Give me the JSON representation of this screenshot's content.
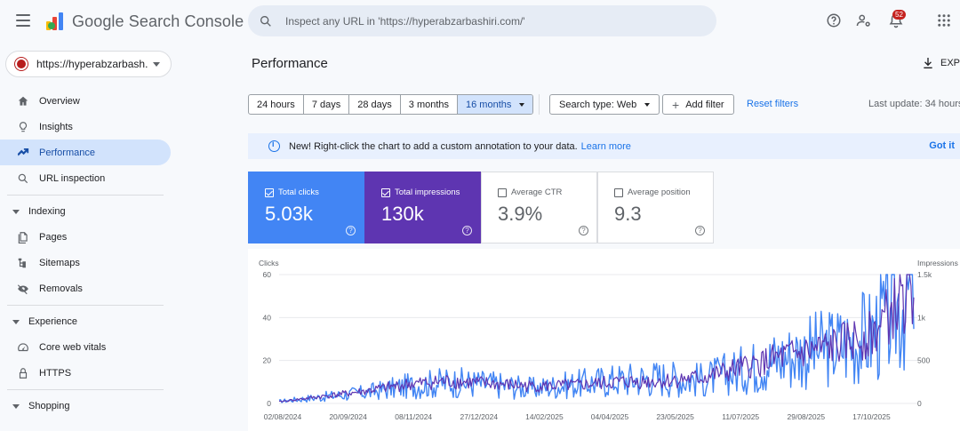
{
  "app": {
    "title": "Google Search Console",
    "property": "https://hyperabzarbash...",
    "search_placeholder": "Inspect any URL in 'https://hyperabzarbashiri.com/'",
    "notification_count": "52"
  },
  "sidebar": {
    "items": [
      {
        "label": "Overview",
        "icon": "home-icon"
      },
      {
        "label": "Insights",
        "icon": "lightbulb-icon"
      },
      {
        "label": "Performance",
        "icon": "trending-up-icon",
        "active": true
      },
      {
        "label": "URL inspection",
        "icon": "search-icon"
      }
    ],
    "indexing": {
      "label": "Indexing",
      "items": [
        {
          "label": "Pages",
          "icon": "pages-icon"
        },
        {
          "label": "Sitemaps",
          "icon": "sitemap-icon"
        },
        {
          "label": "Removals",
          "icon": "eye-off-icon"
        }
      ]
    },
    "experience": {
      "label": "Experience",
      "items": [
        {
          "label": "Core web vitals",
          "icon": "speed-icon"
        },
        {
          "label": "HTTPS",
          "icon": "lock-icon"
        }
      ]
    },
    "shopping": {
      "label": "Shopping"
    }
  },
  "header": {
    "title": "Performance",
    "export_label": "EXPO"
  },
  "filters": {
    "ranges": [
      "24 hours",
      "7 days",
      "28 days",
      "3 months",
      "16 months"
    ],
    "active_range": "16 months",
    "search_type": "Search type: Web",
    "add_filter": "Add filter",
    "reset": "Reset filters",
    "last_update": "Last update: 34 hours"
  },
  "banner": {
    "text": "New! Right-click the chart to add a custom annotation to your data.",
    "link": "Learn more",
    "dismiss": "Got it"
  },
  "metrics": [
    {
      "label": "Total clicks",
      "value": "5.03k",
      "checked": true,
      "color": "#4285f4"
    },
    {
      "label": "Total impressions",
      "value": "130k",
      "checked": true,
      "color": "#5e35b1"
    },
    {
      "label": "Average CTR",
      "value": "3.9%",
      "checked": false
    },
    {
      "label": "Average position",
      "value": "9.3",
      "checked": false
    }
  ],
  "chart_data": {
    "type": "line",
    "left_axis_label": "Clicks",
    "right_axis_label": "Impressions",
    "left_ticks": [
      "60",
      "40",
      "20",
      "0"
    ],
    "right_ticks": [
      "1.5k",
      "1k",
      "500",
      "0"
    ],
    "ylim_left": [
      0,
      60
    ],
    "ylim_right": [
      0,
      1500
    ],
    "x_ticks": [
      "02/08/2024",
      "20/09/2024",
      "08/11/2024",
      "27/12/2024",
      "14/02/2025",
      "04/04/2025",
      "23/05/2025",
      "11/07/2025",
      "29/08/2025",
      "17/10/2025"
    ],
    "x": [
      "2024-08",
      "2024-09",
      "2024-10",
      "2024-11",
      "2024-12",
      "2025-01",
      "2025-02",
      "2025-03",
      "2025-04",
      "2025-05",
      "2025-06",
      "2025-07",
      "2025-08",
      "2025-09",
      "2025-10",
      "2025-11"
    ],
    "series": [
      {
        "name": "Clicks",
        "axis": "left",
        "color": "#4285f4",
        "values": [
          1,
          3,
          5,
          8,
          10,
          9,
          7,
          9,
          11,
          12,
          11,
          16,
          22,
          26,
          32,
          55
        ]
      },
      {
        "name": "Impressions",
        "axis": "right",
        "color": "#5e35b1",
        "values": [
          20,
          80,
          140,
          220,
          260,
          230,
          200,
          210,
          250,
          260,
          300,
          420,
          550,
          650,
          800,
          1350
        ]
      }
    ]
  }
}
